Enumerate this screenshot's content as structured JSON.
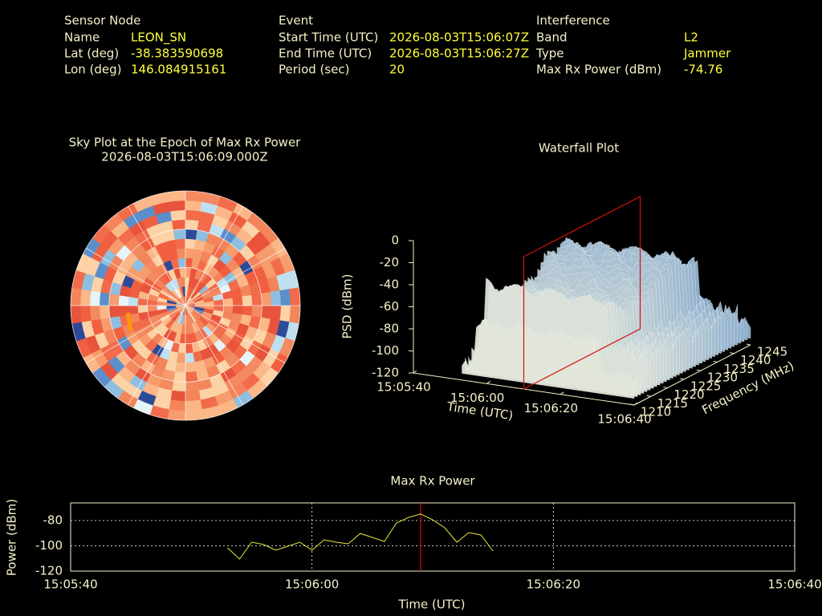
{
  "header": {
    "sensor": {
      "title": "Sensor Node",
      "rows": [
        [
          "Name",
          "LEON_SN"
        ],
        [
          "Lat (deg)",
          "-38.383590698"
        ],
        [
          "Lon (deg)",
          "146.084915161"
        ]
      ]
    },
    "event": {
      "title": "Event",
      "rows": [
        [
          "Start Time (UTC)",
          "2026-08-03T15:06:07Z"
        ],
        [
          "End Time (UTC)",
          "2026-08-03T15:06:27Z"
        ],
        [
          "Period (sec)",
          "20"
        ]
      ]
    },
    "interference": {
      "title": "Interference",
      "rows": [
        [
          "Band",
          "L2"
        ],
        [
          "Type",
          "Jammer"
        ],
        [
          "Max Rx Power (dBm)",
          "-74.76"
        ]
      ]
    }
  },
  "sky_plot": {
    "title": "Sky Plot at the Epoch of Max Rx Power",
    "subtitle": "2026-08-03T15:06:09.000Z"
  },
  "chart_data": [
    {
      "type": "surface3d",
      "title": "Waterfall Plot",
      "zlabel": "PSD (dBm)",
      "xlabel": "Time (UTC)",
      "ylabel": "Frequency (MHz)",
      "zlim": [
        -120,
        0
      ],
      "zticks": [
        0,
        -20,
        -40,
        -60,
        -80,
        -100,
        -120
      ],
      "xlim": [
        "15:05:40",
        "15:06:40"
      ],
      "xticks": [
        "15:05:40",
        "15:06:00",
        "15:06:20",
        "15:06:40"
      ],
      "ylim": [
        1210,
        1245
      ],
      "yticks": [
        1210,
        1215,
        1220,
        1225,
        1230,
        1235,
        1240,
        1245
      ]
    },
    {
      "type": "line",
      "title": "Max Rx Power",
      "xlabel": "Time (UTC)",
      "ylabel": "Power (dBm)",
      "x": [
        "15:05:53",
        "15:05:54",
        "15:05:55",
        "15:05:56",
        "15:05:57",
        "15:05:58",
        "15:05:59",
        "15:06:00",
        "15:06:01",
        "15:06:02",
        "15:06:03",
        "15:06:04",
        "15:06:05",
        "15:06:06",
        "15:06:07",
        "15:06:08",
        "15:06:09",
        "15:06:10",
        "15:06:11",
        "15:06:12",
        "15:06:13",
        "15:06:14",
        "15:06:15"
      ],
      "series": [
        {
          "color": "#e8e83a",
          "values": [
            -101.6,
            -110.5,
            -97.1,
            -99.0,
            -103.5,
            -100.3,
            -97.1,
            -103.5,
            -95.2,
            -97.1,
            -98.4,
            -90.2,
            -93.3,
            -96.5,
            -81.9,
            -77.5,
            -74.76,
            -79.4,
            -85.7,
            -97.1,
            -89.5,
            -91.4,
            -104.1
          ]
        }
      ],
      "xlim": [
        "15:05:40",
        "15:06:40"
      ],
      "xticks": [
        "15:05:40",
        "15:06:00",
        "15:06:20",
        "15:06:40"
      ],
      "ylim": [
        -120,
        -66
      ],
      "yticks": [
        -120,
        -100,
        -80
      ],
      "grid": true
    }
  ]
}
